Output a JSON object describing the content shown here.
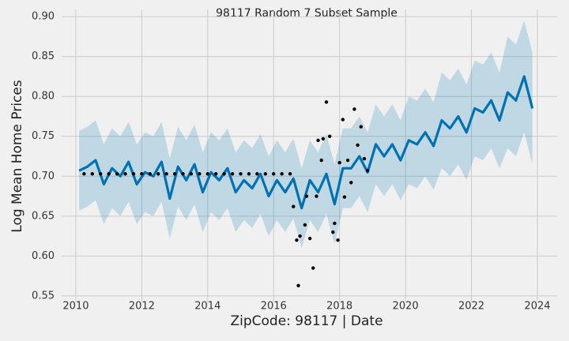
{
  "chart_data": {
    "type": "line",
    "title": "98117 Random 7 Subset Sample",
    "x_label": "ZipCode: 98117 | Date",
    "y_label": "Log Mean Home Prices",
    "xlim": [
      2009.57,
      2024.6
    ],
    "ylim": [
      0.542,
      0.909
    ],
    "xticks": [
      2010,
      2012,
      2014,
      2016,
      2018,
      2020,
      2022,
      2024
    ],
    "yticks": [
      0.55,
      {
        "value": 0.6,
        "label": "0.60"
      },
      0.65,
      {
        "value": 0.7,
        "label": "0.70"
      },
      0.75,
      {
        "value": 0.8,
        "label": "0.80"
      },
      0.85,
      {
        "value": 0.9,
        "label": "0.90"
      }
    ],
    "grid": true,
    "x": [
      2010.1,
      2010.35,
      2010.6,
      2010.85,
      2011.1,
      2011.35,
      2011.6,
      2011.85,
      2012.1,
      2012.35,
      2012.6,
      2012.85,
      2013.1,
      2013.35,
      2013.6,
      2013.85,
      2014.1,
      2014.35,
      2014.6,
      2014.85,
      2015.1,
      2015.35,
      2015.6,
      2015.85,
      2016.1,
      2016.35,
      2016.6,
      2016.85,
      2017.1,
      2017.35,
      2017.6,
      2017.85,
      2018.1,
      2018.35,
      2018.6,
      2018.85,
      2019.1,
      2019.35,
      2019.6,
      2019.85,
      2020.1,
      2020.35,
      2020.6,
      2020.85,
      2021.1,
      2021.35,
      2021.6,
      2021.85,
      2022.1,
      2022.35,
      2022.6,
      2022.85,
      2023.1,
      2023.35,
      2023.6,
      2023.85
    ],
    "forecast": {
      "color": "#0072b2",
      "values": [
        0.707,
        0.712,
        0.72,
        0.69,
        0.71,
        0.7,
        0.718,
        0.69,
        0.705,
        0.7,
        0.718,
        0.672,
        0.712,
        0.695,
        0.715,
        0.68,
        0.705,
        0.695,
        0.71,
        0.68,
        0.695,
        0.685,
        0.703,
        0.675,
        0.695,
        0.68,
        0.697,
        0.66,
        0.695,
        0.68,
        0.703,
        0.665,
        0.71,
        0.71,
        0.725,
        0.705,
        0.74,
        0.725,
        0.74,
        0.72,
        0.745,
        0.74,
        0.755,
        0.738,
        0.77,
        0.76,
        0.775,
        0.755,
        0.785,
        0.78,
        0.795,
        0.77,
        0.805,
        0.795,
        0.825,
        0.785
      ]
    },
    "interval": {
      "color": "#0072b2",
      "upper": [
        0.757,
        0.762,
        0.77,
        0.74,
        0.76,
        0.75,
        0.768,
        0.74,
        0.755,
        0.75,
        0.768,
        0.722,
        0.762,
        0.745,
        0.765,
        0.73,
        0.755,
        0.745,
        0.76,
        0.73,
        0.745,
        0.735,
        0.753,
        0.725,
        0.745,
        0.73,
        0.747,
        0.71,
        0.745,
        0.73,
        0.753,
        0.715,
        0.76,
        0.76,
        0.775,
        0.755,
        0.79,
        0.775,
        0.79,
        0.77,
        0.8,
        0.795,
        0.81,
        0.793,
        0.83,
        0.82,
        0.835,
        0.815,
        0.845,
        0.84,
        0.855,
        0.83,
        0.875,
        0.865,
        0.895,
        0.855
      ],
      "lower": [
        0.657,
        0.662,
        0.67,
        0.64,
        0.66,
        0.65,
        0.668,
        0.64,
        0.655,
        0.65,
        0.668,
        0.622,
        0.662,
        0.645,
        0.665,
        0.63,
        0.655,
        0.645,
        0.66,
        0.63,
        0.645,
        0.635,
        0.653,
        0.625,
        0.645,
        0.63,
        0.647,
        0.61,
        0.645,
        0.63,
        0.653,
        0.615,
        0.66,
        0.66,
        0.675,
        0.655,
        0.69,
        0.675,
        0.69,
        0.67,
        0.69,
        0.685,
        0.7,
        0.683,
        0.71,
        0.7,
        0.715,
        0.695,
        0.725,
        0.72,
        0.735,
        0.71,
        0.735,
        0.725,
        0.755,
        0.715
      ]
    },
    "observed": {
      "color": "#000000",
      "x": [
        2010.25,
        2010.5,
        2010.75,
        2011.0,
        2011.25,
        2011.5,
        2011.75,
        2012.0,
        2012.25,
        2012.5,
        2012.75,
        2013.0,
        2013.25,
        2013.5,
        2013.75,
        2014.0,
        2014.25,
        2014.5,
        2014.75,
        2015.0,
        2015.25,
        2015.5,
        2015.75,
        2016.0,
        2016.25,
        2016.5,
        2016.6,
        2016.7,
        2016.75,
        2016.8,
        2016.95,
        2017.0,
        2017.1,
        2017.2,
        2017.3,
        2017.35,
        2017.45,
        2017.5,
        2017.6,
        2017.7,
        2017.8,
        2017.85,
        2017.95,
        2018.0,
        2018.1,
        2018.15,
        2018.25,
        2018.35,
        2018.45,
        2018.55,
        2018.65,
        2018.75,
        2018.85
      ],
      "values": [
        0.703,
        0.703,
        0.703,
        0.703,
        0.703,
        0.703,
        0.703,
        0.703,
        0.703,
        0.703,
        0.703,
        0.703,
        0.703,
        0.703,
        0.703,
        0.703,
        0.703,
        0.703,
        0.703,
        0.703,
        0.703,
        0.703,
        0.703,
        0.703,
        0.703,
        0.703,
        0.662,
        0.62,
        0.563,
        0.625,
        0.639,
        0.675,
        0.622,
        0.585,
        0.675,
        0.745,
        0.72,
        0.747,
        0.793,
        0.75,
        0.63,
        0.641,
        0.62,
        0.717,
        0.771,
        0.674,
        0.72,
        0.692,
        0.784,
        0.739,
        0.762,
        0.722,
        0.707
      ]
    }
  }
}
